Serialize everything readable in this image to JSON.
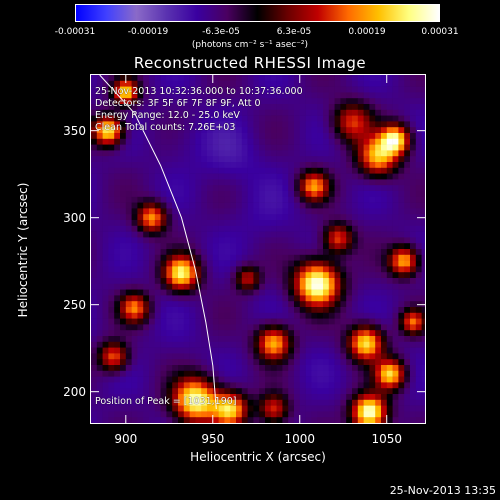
{
  "colorbar": {
    "ticks": [
      "-0.00031",
      "-0.00019",
      "-6.3e-05",
      "6.3e-05",
      "0.00019",
      "0.00031"
    ],
    "units": "(photons cm⁻² s⁻¹ asec⁻²)"
  },
  "title": "Reconstructed RHESSI Image",
  "info": {
    "time_range": "25-Nov-2013 10:32:36.000 to 10:37:36.000",
    "detectors": "Detectors: 3F 5F 6F 7F 8F 9F, Att 0",
    "energy": "Energy Range: 12.0 - 25.0 keV",
    "clean": "Clean    Total counts: 7.26E+03",
    "peak": "Position of Peak = [1031,190]"
  },
  "chart_data": {
    "type": "heatmap",
    "title": "Reconstructed RHESSI Image",
    "xlabel": "Heliocentric X (arcsec)",
    "ylabel": "Heliocentric Y (arcsec)",
    "xlim": [
      880,
      1072
    ],
    "ylim": [
      182,
      382
    ],
    "xticks": [
      900,
      950,
      1000,
      1050
    ],
    "yticks": [
      200,
      250,
      300,
      350
    ],
    "value_range": [
      -0.00031,
      0.00031
    ],
    "colormap": [
      "#0000ff",
      "#4040ff",
      "#8a6ac8",
      "#5a32b0",
      "#3a00a0",
      "#4a0060",
      "#000000",
      "#6a0000",
      "#c00000",
      "#ff6a00",
      "#ffc000",
      "#ffff80",
      "#ffffff"
    ],
    "peak_position": [
      1031,
      190
    ],
    "limb_curve": [
      [
        885,
        382
      ],
      [
        905,
        360
      ],
      [
        920,
        330
      ],
      [
        932,
        300
      ],
      [
        940,
        270
      ],
      [
        946,
        240
      ],
      [
        950,
        215
      ],
      [
        952,
        190
      ]
    ],
    "sources": [
      {
        "x": 1010,
        "y": 262,
        "v": 0.00031,
        "s": 9
      },
      {
        "x": 932,
        "y": 268,
        "v": 0.00025,
        "s": 7
      },
      {
        "x": 940,
        "y": 195,
        "v": 0.00028,
        "s": 9
      },
      {
        "x": 960,
        "y": 190,
        "v": 0.00022,
        "s": 7
      },
      {
        "x": 890,
        "y": 350,
        "v": 0.00026,
        "s": 6
      },
      {
        "x": 900,
        "y": 372,
        "v": 0.00022,
        "s": 5
      },
      {
        "x": 1045,
        "y": 335,
        "v": 0.0002,
        "s": 8
      },
      {
        "x": 1055,
        "y": 345,
        "v": 0.00024,
        "s": 6
      },
      {
        "x": 1038,
        "y": 228,
        "v": 0.00024,
        "s": 7
      },
      {
        "x": 1052,
        "y": 210,
        "v": 0.00022,
        "s": 6
      },
      {
        "x": 1040,
        "y": 188,
        "v": 0.00031,
        "s": 7
      },
      {
        "x": 1060,
        "y": 275,
        "v": 0.0002,
        "s": 6
      },
      {
        "x": 985,
        "y": 228,
        "v": 0.0002,
        "s": 7
      },
      {
        "x": 915,
        "y": 300,
        "v": 0.00018,
        "s": 6
      },
      {
        "x": 905,
        "y": 248,
        "v": 0.00015,
        "s": 6
      },
      {
        "x": 893,
        "y": 220,
        "v": 0.00015,
        "s": 6
      },
      {
        "x": 1008,
        "y": 318,
        "v": 0.00017,
        "s": 6
      },
      {
        "x": 985,
        "y": 190,
        "v": 0.00012,
        "s": 6
      },
      {
        "x": 1022,
        "y": 288,
        "v": 0.00014,
        "s": 6
      },
      {
        "x": 1030,
        "y": 355,
        "v": 0.00012,
        "s": 8
      },
      {
        "x": 970,
        "y": 265,
        "v": 0.0001,
        "s": 5
      },
      {
        "x": 1065,
        "y": 240,
        "v": 0.00014,
        "s": 5
      },
      {
        "x": 960,
        "y": 335,
        "v": -0.00012,
        "s": 12
      },
      {
        "x": 980,
        "y": 300,
        "v": -0.0001,
        "s": 14
      },
      {
        "x": 935,
        "y": 345,
        "v": -0.0001,
        "s": 10
      },
      {
        "x": 930,
        "y": 230,
        "v": -9e-05,
        "s": 10
      },
      {
        "x": 1005,
        "y": 215,
        "v": -9e-05,
        "s": 10
      },
      {
        "x": 1045,
        "y": 300,
        "v": -8e-05,
        "s": 8
      }
    ]
  },
  "timestamp": "25-Nov-2013 13:35"
}
